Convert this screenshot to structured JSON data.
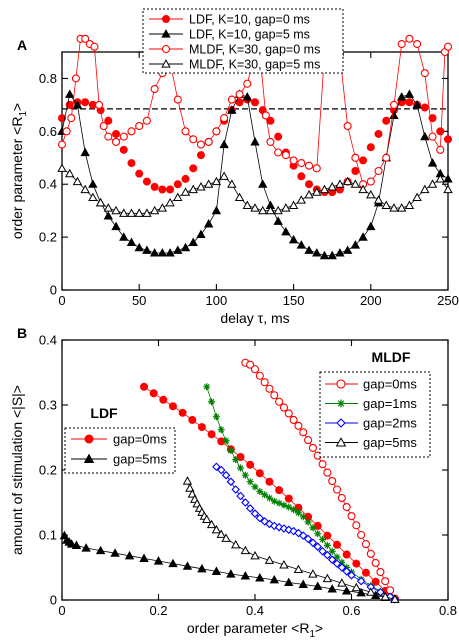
{
  "chart_data": [
    {
      "type": "scatter",
      "panel_label": "A",
      "xlabel": "delay τ, ms",
      "ylabel": "order parameter <R1>",
      "xlim": [
        0,
        250
      ],
      "ylim": [
        0,
        0.9
      ],
      "xticks": [
        0,
        50,
        100,
        150,
        200,
        250
      ],
      "yticks": [
        0,
        0.2,
        0.4,
        0.6,
        0.8
      ],
      "grid": false,
      "legend_position": "top-center",
      "reference_line": {
        "y": 0.685,
        "style": "dashed"
      },
      "series": [
        {
          "name": "LDF, K=10, gap=0 ms",
          "color": "#ff0000",
          "marker": "filled-circle",
          "line": false,
          "x": [
            0,
            5,
            10,
            15,
            20,
            25,
            30,
            35,
            40,
            45,
            50,
            55,
            60,
            65,
            70,
            75,
            80,
            85,
            90,
            95,
            100,
            105,
            110,
            115,
            120,
            125,
            130,
            135,
            140,
            145,
            150,
            155,
            160,
            165,
            170,
            175,
            180,
            185,
            190,
            195,
            200,
            205,
            210,
            215,
            220,
            225,
            230,
            235,
            240,
            245,
            250
          ],
          "y": [
            0.65,
            0.7,
            0.71,
            0.71,
            0.7,
            0.68,
            0.64,
            0.59,
            0.53,
            0.48,
            0.44,
            0.41,
            0.39,
            0.38,
            0.38,
            0.4,
            0.42,
            0.46,
            0.51,
            0.56,
            0.6,
            0.64,
            0.68,
            0.71,
            0.72,
            0.71,
            0.68,
            0.64,
            0.58,
            0.52,
            0.47,
            0.43,
            0.4,
            0.38,
            0.37,
            0.37,
            0.38,
            0.41,
            0.45,
            0.49,
            0.54,
            0.59,
            0.64,
            0.68,
            0.71,
            0.71,
            0.7,
            0.69,
            0.65,
            0.6,
            0.57
          ]
        },
        {
          "name": "LDF, K=10, gap=5 ms",
          "color": "#000000",
          "marker": "filled-triangle",
          "line": true,
          "x": [
            0,
            5,
            10,
            15,
            20,
            25,
            30,
            35,
            40,
            45,
            50,
            55,
            60,
            65,
            70,
            75,
            80,
            85,
            90,
            95,
            100,
            105,
            110,
            115,
            120,
            125,
            130,
            135,
            140,
            145,
            150,
            155,
            160,
            165,
            170,
            175,
            180,
            185,
            190,
            195,
            200,
            205,
            210,
            215,
            220,
            225,
            230,
            235,
            240,
            245,
            250
          ],
          "y": [
            0.6,
            0.74,
            0.7,
            0.52,
            0.4,
            0.33,
            0.28,
            0.24,
            0.2,
            0.18,
            0.16,
            0.15,
            0.14,
            0.14,
            0.14,
            0.15,
            0.16,
            0.18,
            0.21,
            0.25,
            0.3,
            0.55,
            0.68,
            0.74,
            0.73,
            0.56,
            0.4,
            0.32,
            0.26,
            0.22,
            0.19,
            0.17,
            0.15,
            0.14,
            0.13,
            0.13,
            0.14,
            0.15,
            0.17,
            0.2,
            0.24,
            0.33,
            0.5,
            0.66,
            0.73,
            0.74,
            0.7,
            0.58,
            0.48,
            0.44,
            0.42
          ]
        },
        {
          "name": "MLDF, K=30, gap=0 ms",
          "color": "#ff0000",
          "marker": "open-circle",
          "line": true,
          "x": [
            0,
            3,
            6,
            9,
            12,
            15,
            18,
            21,
            24,
            27,
            30,
            35,
            40,
            45,
            50,
            55,
            60,
            65,
            70,
            75,
            80,
            85,
            90,
            95,
            100,
            105,
            110,
            115,
            120,
            123,
            126,
            129,
            132,
            135,
            140,
            145,
            150,
            155,
            160,
            165,
            170,
            175,
            180,
            185,
            190,
            195,
            200,
            205,
            210,
            215,
            220,
            225,
            230,
            235,
            240,
            245,
            248,
            250
          ],
          "y": [
            0.55,
            0.6,
            0.65,
            0.8,
            0.95,
            0.95,
            0.93,
            0.92,
            0.7,
            0.62,
            0.58,
            0.56,
            0.58,
            0.6,
            0.62,
            0.64,
            0.76,
            0.82,
            0.86,
            0.72,
            0.6,
            0.57,
            0.55,
            0.56,
            0.6,
            0.65,
            0.72,
            0.74,
            0.78,
            0.85,
            0.9,
            0.84,
            0.66,
            0.56,
            0.52,
            0.51,
            0.49,
            0.48,
            0.47,
            0.46,
            0.89,
            0.89,
            0.89,
            0.62,
            0.5,
            0.4,
            0.41,
            0.45,
            0.5,
            0.7,
            0.93,
            0.95,
            0.93,
            0.82,
            0.58,
            0.53,
            0.9,
            0.92
          ]
        },
        {
          "name": "MLDF, K=30, gap=5 ms",
          "color": "#000000",
          "marker": "open-triangle",
          "line": true,
          "x": [
            0,
            5,
            10,
            15,
            20,
            25,
            30,
            35,
            40,
            45,
            50,
            55,
            60,
            65,
            70,
            75,
            80,
            85,
            90,
            95,
            100,
            105,
            110,
            115,
            120,
            125,
            130,
            135,
            140,
            145,
            150,
            155,
            160,
            165,
            170,
            175,
            180,
            185,
            190,
            195,
            200,
            205,
            210,
            215,
            220,
            225,
            230,
            235,
            240,
            245,
            250
          ],
          "y": [
            0.46,
            0.44,
            0.41,
            0.38,
            0.35,
            0.33,
            0.31,
            0.3,
            0.29,
            0.29,
            0.29,
            0.29,
            0.3,
            0.31,
            0.33,
            0.35,
            0.37,
            0.38,
            0.39,
            0.4,
            0.41,
            0.43,
            0.4,
            0.35,
            0.32,
            0.31,
            0.3,
            0.3,
            0.3,
            0.31,
            0.32,
            0.34,
            0.36,
            0.37,
            0.38,
            0.39,
            0.4,
            0.41,
            0.4,
            0.38,
            0.36,
            0.34,
            0.32,
            0.31,
            0.31,
            0.32,
            0.35,
            0.38,
            0.4,
            0.42,
            0.38
          ]
        }
      ]
    },
    {
      "type": "scatter",
      "panel_label": "B",
      "xlabel": "order parameter <R1>",
      "ylabel": "amount of stimulation <|S|>",
      "xlim": [
        0,
        0.8
      ],
      "ylim": [
        0,
        0.4
      ],
      "xticks": [
        0,
        0.2,
        0.4,
        0.6,
        0.8
      ],
      "yticks": [
        0,
        0.1,
        0.2,
        0.3,
        0.4
      ],
      "grid": false,
      "groups": [
        {
          "title": "LDF",
          "legend_position": "middle-left",
          "series_indices": [
            0,
            1
          ]
        },
        {
          "title": "MLDF",
          "legend_position": "top-right",
          "series_indices": [
            2,
            3,
            4,
            5
          ]
        }
      ],
      "series": [
        {
          "name": "gap=0ms",
          "color": "#ff0000",
          "marker": "filled-circle",
          "line": true,
          "x": [
            0.17,
            0.19,
            0.21,
            0.23,
            0.25,
            0.27,
            0.29,
            0.31,
            0.33,
            0.35,
            0.37,
            0.39,
            0.41,
            0.43,
            0.45,
            0.47,
            0.49,
            0.51,
            0.53,
            0.55,
            0.57,
            0.59,
            0.61,
            0.63,
            0.65,
            0.67,
            0.69
          ],
          "y": [
            0.328,
            0.318,
            0.308,
            0.298,
            0.288,
            0.277,
            0.266,
            0.255,
            0.244,
            0.232,
            0.22,
            0.208,
            0.195,
            0.182,
            0.169,
            0.156,
            0.142,
            0.128,
            0.114,
            0.099,
            0.085,
            0.07,
            0.056,
            0.042,
            0.028,
            0.014,
            0.002
          ]
        },
        {
          "name": "gap=5ms",
          "color": "#000000",
          "marker": "filled-triangle",
          "line": true,
          "x": [
            0.005,
            0.01,
            0.015,
            0.02,
            0.03,
            0.05,
            0.08,
            0.11,
            0.14,
            0.17,
            0.2,
            0.23,
            0.26,
            0.29,
            0.32,
            0.35,
            0.38,
            0.41,
            0.44,
            0.47,
            0.5,
            0.53,
            0.56,
            0.59,
            0.62,
            0.65,
            0.67,
            0.69
          ],
          "y": [
            0.099,
            0.092,
            0.089,
            0.086,
            0.084,
            0.08,
            0.076,
            0.072,
            0.068,
            0.064,
            0.06,
            0.056,
            0.052,
            0.048,
            0.044,
            0.04,
            0.037,
            0.034,
            0.031,
            0.027,
            0.024,
            0.021,
            0.017,
            0.014,
            0.011,
            0.007,
            0.004,
            0.001
          ]
        },
        {
          "name": "gap=0ms",
          "color": "#ff0000",
          "marker": "open-circle",
          "line": true,
          "x": [
            0.38,
            0.39,
            0.4,
            0.41,
            0.42,
            0.43,
            0.44,
            0.45,
            0.46,
            0.47,
            0.48,
            0.49,
            0.5,
            0.51,
            0.52,
            0.53,
            0.54,
            0.55,
            0.56,
            0.57,
            0.58,
            0.59,
            0.6,
            0.61,
            0.62,
            0.63,
            0.64,
            0.65,
            0.66,
            0.67,
            0.68,
            0.69
          ],
          "y": [
            0.365,
            0.362,
            0.355,
            0.345,
            0.335,
            0.325,
            0.315,
            0.305,
            0.296,
            0.287,
            0.277,
            0.268,
            0.258,
            0.246,
            0.234,
            0.222,
            0.209,
            0.196,
            0.183,
            0.17,
            0.157,
            0.143,
            0.129,
            0.115,
            0.1,
            0.086,
            0.071,
            0.057,
            0.043,
            0.029,
            0.015,
            0.002
          ]
        },
        {
          "name": "gap=1ms",
          "color": "#008000",
          "marker": "star",
          "line": true,
          "x": [
            0.3,
            0.31,
            0.32,
            0.33,
            0.34,
            0.35,
            0.36,
            0.37,
            0.38,
            0.39,
            0.4,
            0.41,
            0.42,
            0.43,
            0.44,
            0.45,
            0.46,
            0.47,
            0.48,
            0.49,
            0.5,
            0.51,
            0.52,
            0.53,
            0.54,
            0.55,
            0.56,
            0.57,
            0.58,
            0.59,
            0.6,
            0.62,
            0.64,
            0.66,
            0.68,
            0.69
          ],
          "y": [
            0.328,
            0.305,
            0.282,
            0.262,
            0.245,
            0.23,
            0.216,
            0.203,
            0.192,
            0.182,
            0.174,
            0.167,
            0.162,
            0.157,
            0.152,
            0.149,
            0.146,
            0.143,
            0.139,
            0.134,
            0.128,
            0.12,
            0.111,
            0.102,
            0.093,
            0.084,
            0.075,
            0.066,
            0.058,
            0.05,
            0.043,
            0.032,
            0.022,
            0.013,
            0.005,
            0.001
          ]
        },
        {
          "name": "gap=2ms",
          "color": "#0000ff",
          "marker": "open-diamond",
          "line": true,
          "x": [
            0.32,
            0.33,
            0.34,
            0.35,
            0.36,
            0.37,
            0.38,
            0.39,
            0.4,
            0.41,
            0.42,
            0.43,
            0.44,
            0.45,
            0.46,
            0.47,
            0.48,
            0.49,
            0.5,
            0.51,
            0.52,
            0.53,
            0.54,
            0.55,
            0.56,
            0.57,
            0.58,
            0.59,
            0.6,
            0.62,
            0.64,
            0.66,
            0.68,
            0.69
          ],
          "y": [
            0.205,
            0.2,
            0.192,
            0.182,
            0.17,
            0.16,
            0.15,
            0.141,
            0.133,
            0.126,
            0.121,
            0.117,
            0.114,
            0.112,
            0.11,
            0.108,
            0.106,
            0.103,
            0.099,
            0.094,
            0.088,
            0.082,
            0.075,
            0.069,
            0.062,
            0.056,
            0.05,
            0.044,
            0.038,
            0.029,
            0.02,
            0.012,
            0.005,
            0.001
          ]
        },
        {
          "name": "gap=5ms",
          "color": "#000000",
          "marker": "open-triangle",
          "line": true,
          "x": [
            0.26,
            0.265,
            0.27,
            0.275,
            0.28,
            0.285,
            0.29,
            0.295,
            0.3,
            0.31,
            0.32,
            0.33,
            0.34,
            0.36,
            0.38,
            0.4,
            0.43,
            0.46,
            0.49,
            0.52,
            0.55,
            0.58,
            0.61,
            0.64,
            0.67,
            0.69
          ],
          "y": [
            0.183,
            0.172,
            0.163,
            0.155,
            0.148,
            0.141,
            0.135,
            0.129,
            0.124,
            0.116,
            0.108,
            0.101,
            0.095,
            0.085,
            0.076,
            0.068,
            0.061,
            0.054,
            0.047,
            0.04,
            0.033,
            0.026,
            0.019,
            0.012,
            0.005,
            0.001
          ]
        }
      ]
    }
  ]
}
